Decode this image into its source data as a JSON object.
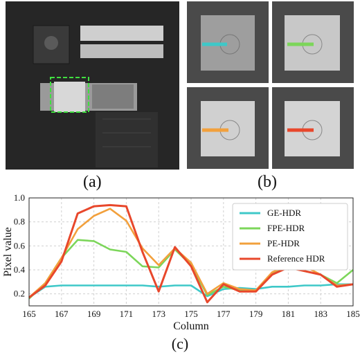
{
  "figure": {
    "panel_a_label": "(a)",
    "panel_b_label": "(b)",
    "panel_c_label": "(c)",
    "line_colors": [
      "#3ec8c8",
      "#7cd65a",
      "#f2a03c",
      "#e8472b"
    ]
  },
  "chart_data": {
    "type": "line",
    "xlabel": "Column",
    "ylabel": "Pixel value",
    "xlim": [
      165,
      185
    ],
    "ylim": [
      0.1,
      1.0
    ],
    "xticks": [
      165,
      167,
      169,
      171,
      173,
      175,
      177,
      179,
      181,
      183,
      185
    ],
    "yticks": [
      0.2,
      0.4,
      0.6,
      0.8,
      1.0
    ],
    "ytick_labels": [
      "0.2",
      "0.4",
      "0.6",
      "0.8",
      "1.0"
    ],
    "grid": true,
    "legend_position": "right",
    "x": [
      165,
      166,
      167,
      168,
      169,
      170,
      171,
      172,
      173,
      174,
      175,
      176,
      177,
      178,
      179,
      180,
      181,
      182,
      183,
      184,
      185
    ],
    "series": [
      {
        "name": "GE-HDR",
        "color": "#3ec8c8",
        "values": [
          0.17,
          0.26,
          0.27,
          0.27,
          0.27,
          0.27,
          0.27,
          0.27,
          0.26,
          0.27,
          0.27,
          0.18,
          0.24,
          0.25,
          0.24,
          0.26,
          0.26,
          0.27,
          0.27,
          0.28,
          0.28
        ]
      },
      {
        "name": "FPE-HDR",
        "color": "#7cd65a",
        "values": [
          0.16,
          0.29,
          0.5,
          0.65,
          0.64,
          0.57,
          0.55,
          0.43,
          0.42,
          0.57,
          0.44,
          0.19,
          0.26,
          0.23,
          0.23,
          0.37,
          0.42,
          0.39,
          0.36,
          0.29,
          0.4
        ]
      },
      {
        "name": "PE-HDR",
        "color": "#f2a03c",
        "values": [
          0.17,
          0.29,
          0.5,
          0.74,
          0.85,
          0.91,
          0.81,
          0.58,
          0.44,
          0.58,
          0.46,
          0.2,
          0.29,
          0.24,
          0.23,
          0.38,
          0.44,
          0.43,
          0.36,
          0.27,
          0.28
        ]
      },
      {
        "name": "Reference HDR",
        "color": "#e8472b",
        "values": [
          0.17,
          0.27,
          0.47,
          0.87,
          0.93,
          0.94,
          0.93,
          0.55,
          0.22,
          0.59,
          0.43,
          0.13,
          0.28,
          0.22,
          0.22,
          0.36,
          0.42,
          0.39,
          0.36,
          0.26,
          0.28
        ]
      }
    ]
  }
}
